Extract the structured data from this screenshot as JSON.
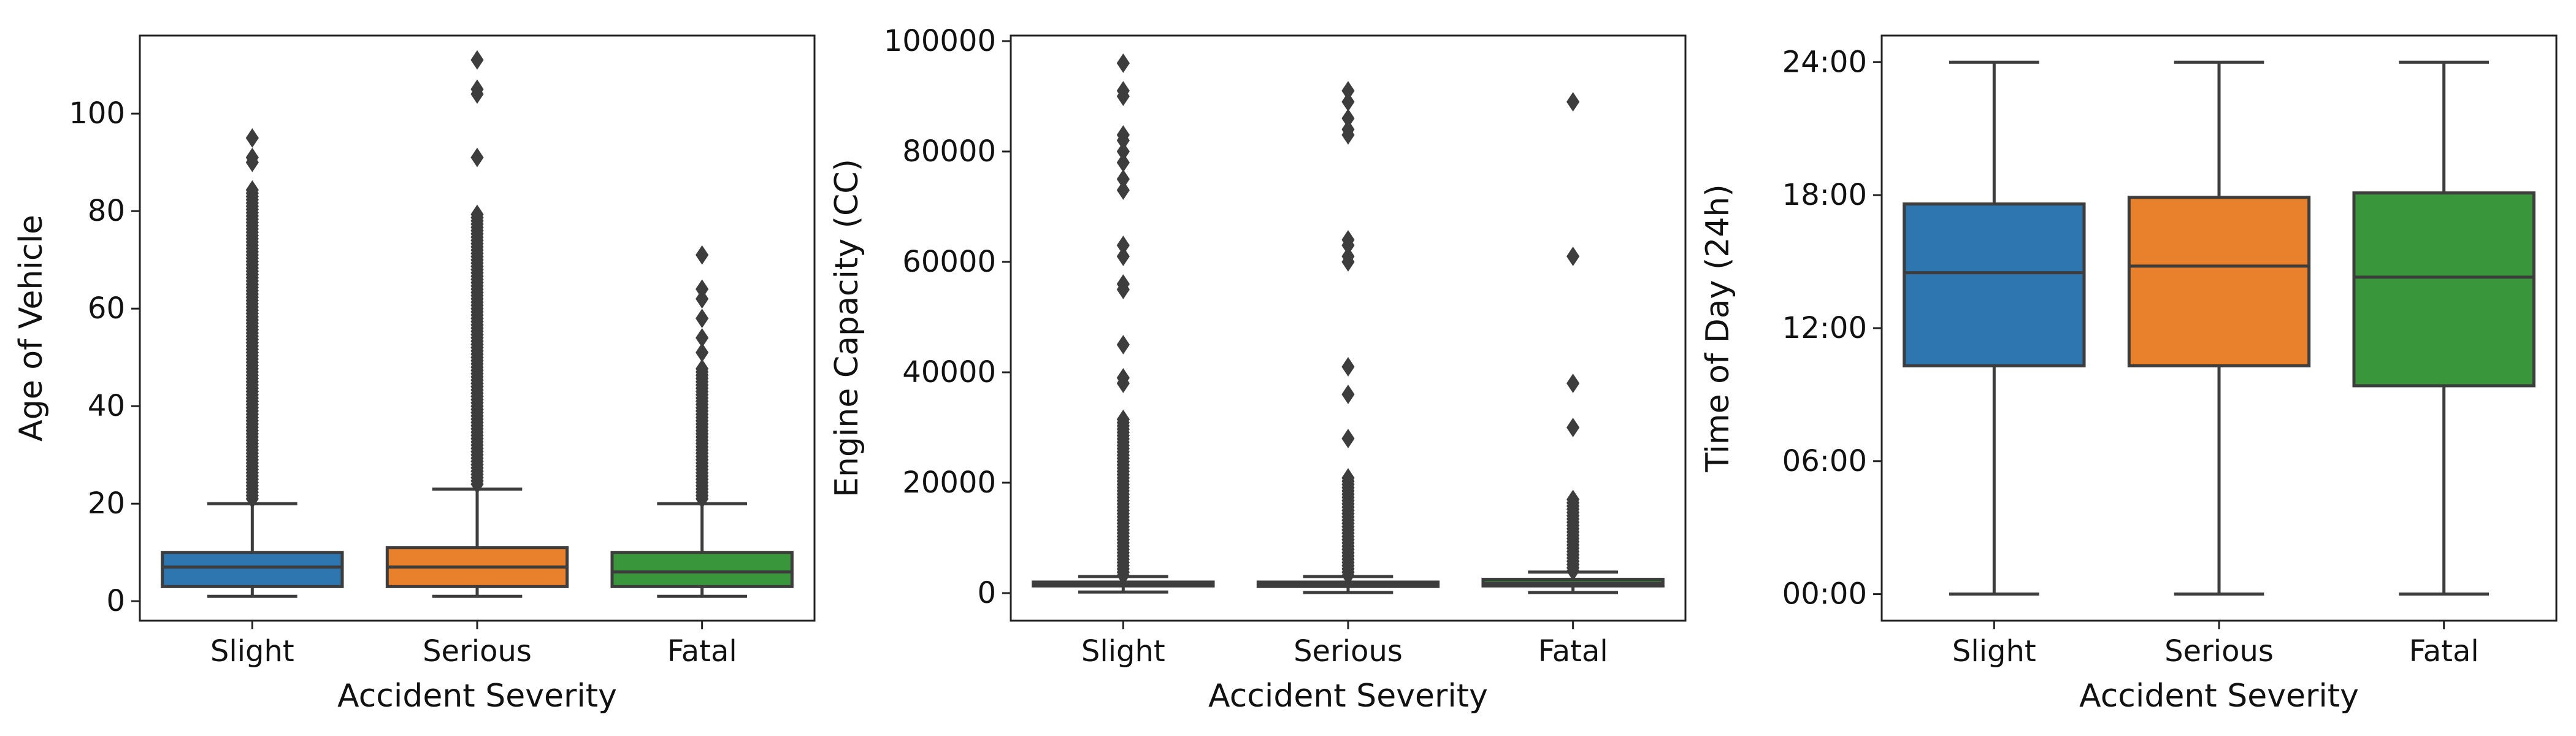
{
  "chart_data": [
    {
      "type": "box",
      "xlabel": "Accident Severity",
      "ylabel": "Age of Vehicle",
      "categories": [
        "Slight",
        "Serious",
        "Fatal"
      ],
      "colors": [
        "#2e76b0",
        "#e8802c",
        "#39963a"
      ],
      "ylim": [
        -4,
        116
      ],
      "yticks": [
        0,
        20,
        40,
        60,
        80,
        100
      ],
      "ytick_labels": [
        "0",
        "20",
        "40",
        "60",
        "80",
        "100"
      ],
      "boxes": [
        {
          "whisker_low": 1,
          "q1": 3,
          "median": 7,
          "q3": 10,
          "whisker_high": 20,
          "outlier_range": [
            21,
            85
          ],
          "outliers": [
            90,
            91,
            95
          ]
        },
        {
          "whisker_low": 1,
          "q1": 3,
          "median": 7,
          "q3": 11,
          "whisker_high": 23,
          "outlier_range": [
            24,
            80
          ],
          "outliers": [
            91,
            104,
            105,
            111
          ]
        },
        {
          "whisker_low": 1,
          "q1": 3,
          "median": 6,
          "q3": 10,
          "whisker_high": 20,
          "outlier_range": [
            21,
            48
          ],
          "outliers": [
            51,
            54,
            58,
            62,
            64,
            71
          ]
        }
      ]
    },
    {
      "type": "box",
      "xlabel": "Accident Severity",
      "ylabel": "Engine Capacity (CC)",
      "categories": [
        "Slight",
        "Serious",
        "Fatal"
      ],
      "colors": [
        "#2e76b0",
        "#e8802c",
        "#39963a"
      ],
      "ylim": [
        -5000,
        101000
      ],
      "yticks": [
        0,
        20000,
        40000,
        60000,
        80000,
        100000
      ],
      "ytick_labels": [
        "0",
        "20000",
        "40000",
        "60000",
        "80000",
        "100000"
      ],
      "boxes": [
        {
          "whisker_low": 200,
          "q1": 1300,
          "median": 1600,
          "q3": 2000,
          "whisker_high": 3000,
          "outlier_range": [
            3200,
            32000
          ],
          "outliers": [
            38000,
            39000,
            45000,
            55000,
            56000,
            61000,
            63000,
            73000,
            75000,
            78000,
            80000,
            82000,
            83000,
            90000,
            91000,
            96000
          ]
        },
        {
          "whisker_low": 100,
          "q1": 1200,
          "median": 1500,
          "q3": 2000,
          "whisker_high": 3000,
          "outlier_range": [
            3200,
            21000
          ],
          "outliers": [
            28000,
            36000,
            41000,
            60000,
            61000,
            63000,
            64000,
            83000,
            84000,
            86000,
            89000,
            91000
          ]
        },
        {
          "whisker_low": 100,
          "q1": 1300,
          "median": 1800,
          "q3": 2500,
          "whisker_high": 3800,
          "outlier_range": [
            4000,
            17000
          ],
          "outliers": [
            30000,
            38000,
            61000,
            89000
          ]
        }
      ]
    },
    {
      "type": "box",
      "xlabel": "Accident Severity",
      "ylabel": "Time of Day (24h)",
      "categories": [
        "Slight",
        "Serious",
        "Fatal"
      ],
      "colors": [
        "#2e76b0",
        "#e8802c",
        "#39963a"
      ],
      "ylim": [
        -1.2,
        25.2
      ],
      "yticks": [
        0,
        6,
        12,
        18,
        24
      ],
      "ytick_labels": [
        "00:00",
        "06:00",
        "12:00",
        "18:00",
        "24:00"
      ],
      "boxes": [
        {
          "whisker_low": 0,
          "q1": 10.3,
          "median": 14.5,
          "q3": 17.6,
          "whisker_high": 24,
          "outliers": []
        },
        {
          "whisker_low": 0,
          "q1": 10.3,
          "median": 14.8,
          "q3": 17.9,
          "whisker_high": 24,
          "outliers": []
        },
        {
          "whisker_low": 0,
          "q1": 9.4,
          "median": 14.3,
          "q3": 18.1,
          "whisker_high": 24,
          "outliers": []
        }
      ]
    }
  ]
}
